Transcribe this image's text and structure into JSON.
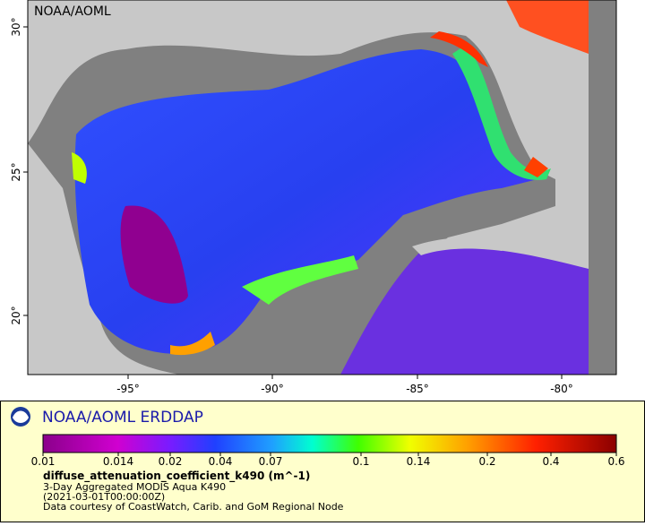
{
  "map": {
    "watermark": "NOAA/AOML",
    "lat_labels": [
      "30°",
      "25°",
      "20°"
    ],
    "lon_labels": [
      "-95°",
      "-90°",
      "-85°",
      "-80°"
    ]
  },
  "legend": {
    "title": "NOAA/AOML ERDDAP",
    "colorbar_ticks": [
      0.01,
      0.014,
      0.02,
      0.04,
      0.07,
      0.1,
      0.14,
      0.2,
      0.4,
      0.6
    ],
    "variable": "diffuse_attenuation_coefficient_k490 (m^-1)",
    "lines": [
      "3-Day Aggregated MODIS Aqua K490",
      "(2021-03-01T00:00:00Z)",
      "Data courtesy of CoastWatch, Carib. and GoM Regional Node"
    ]
  }
}
